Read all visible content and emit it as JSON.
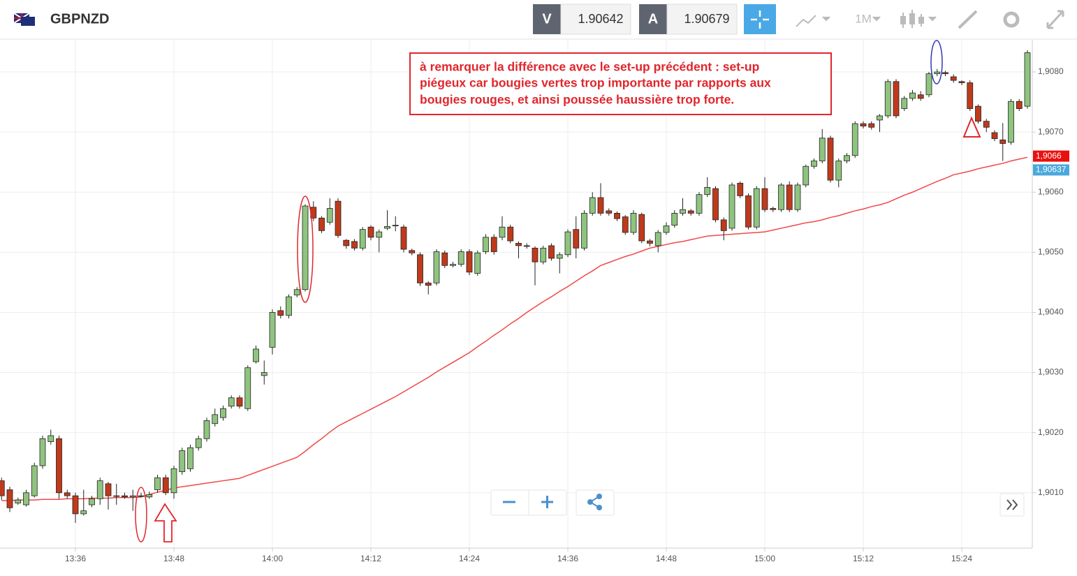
{
  "header": {
    "symbol": "GBPNZD",
    "sell_label": "V",
    "sell": "1.90642",
    "buy_label": "A",
    "buy": "1.90679",
    "timeframe": "1M"
  },
  "chart_data": {
    "type": "candlestick",
    "annotation": [
      "à remarquer la différence avec le set-up précédent : set-up",
      "piégeux car bougies vertes trop importante par rapports aux",
      "bougies rouges, et ainsi poussée haussière trop forte."
    ],
    "categories": [
      null,
      null,
      null,
      null,
      null,
      null,
      null,
      null,
      null,
      "13:36",
      null,
      null,
      null,
      null,
      null,
      null,
      null,
      null,
      null,
      null,
      null,
      "13:48",
      null,
      null,
      null,
      null,
      null,
      null,
      null,
      null,
      null,
      null,
      null,
      "14:00",
      null,
      null,
      null,
      null,
      null,
      null,
      null,
      null,
      null,
      null,
      null,
      "14:12",
      null,
      null,
      null,
      null,
      null,
      null,
      null,
      null,
      null,
      null,
      null,
      "14:24",
      null,
      null,
      null,
      null,
      null,
      null,
      null,
      null,
      null,
      null,
      null,
      "14:36",
      null,
      null,
      null,
      null,
      null,
      null,
      null,
      null,
      null,
      null,
      null,
      "14:48",
      null,
      null,
      null,
      null,
      null,
      null,
      null,
      null,
      null,
      null,
      null,
      "15:00",
      null,
      null,
      null,
      null,
      null,
      null,
      null,
      null,
      null,
      null,
      null,
      "15:12",
      null,
      null,
      null,
      null,
      null,
      null,
      null,
      null,
      null,
      null,
      null,
      "15:24",
      null,
      null,
      null,
      null,
      null,
      null,
      null,
      null
    ],
    "open": [
      1.9012,
      1.90105,
      1.90083,
      1.9008,
      1.90095,
      1.90145,
      1.90185,
      1.9019,
      1.901,
      1.90095,
      1.90065,
      1.9008,
      1.9009,
      1.90115,
      1.90095,
      1.90095,
      1.90093,
      1.90095,
      1.90093,
      1.90105,
      1.90125,
      1.901,
      1.90135,
      1.9014,
      1.90175,
      1.9019,
      1.90215,
      1.90225,
      1.90244,
      1.90258,
      1.9024,
      1.90318,
      1.90295,
      1.90342,
      1.90403,
      1.90395,
      1.90429,
      1.90438,
      1.90575,
      1.90557,
      1.9055,
      1.90585,
      1.9052,
      1.90518,
      1.90507,
      1.90542,
      1.90525,
      1.9054,
      1.90545,
      1.90542,
      1.90503,
      1.90496,
      1.90449,
      1.90449,
      1.90499,
      1.90478,
      1.9048,
      1.90501,
      1.90465,
      1.90501,
      1.90525,
      1.90525,
      1.90542,
      1.90515,
      1.90511,
      1.90507,
      1.90484,
      1.90511,
      1.9049,
      1.90496,
      1.90538,
      1.90507,
      1.90565,
      1.90591,
      1.90569,
      1.90565,
      1.90559,
      1.90533,
      1.90563,
      1.90519,
      1.90511,
      1.90533,
      1.90545,
      1.90565,
      1.90569,
      1.90565,
      1.90596,
      1.90606,
      1.90554,
      1.9054,
      1.90615,
      1.90594,
      1.90542,
      1.90606,
      1.90573,
      1.90571,
      1.90612,
      1.90571,
      1.90612,
      1.90643,
      1.90652,
      1.9069,
      1.9062,
      1.90652,
      1.90661,
      1.90714,
      1.90714,
      1.9072,
      1.90727,
      1.90784,
      1.90739,
      1.90756,
      1.90762,
      1.90762,
      1.90797,
      1.90799,
      1.90792,
      1.90784,
      1.90782,
      1.90743,
      1.90718,
      1.90699,
      1.90687,
      1.90683,
      1.90751,
      1.90743
    ],
    "high": [
      1.90125,
      1.9011,
      1.90092,
      1.90105,
      1.9015,
      1.90195,
      1.90205,
      1.90195,
      1.90105,
      1.901,
      1.90105,
      1.90095,
      1.90125,
      1.90118,
      1.90115,
      1.901,
      1.90105,
      1.901,
      1.90102,
      1.9013,
      1.9013,
      1.90145,
      1.90175,
      1.9018,
      1.90195,
      1.90225,
      1.9024,
      1.90245,
      1.90262,
      1.90262,
      1.90312,
      1.90345,
      1.9032,
      1.90405,
      1.9041,
      1.9043,
      1.90442,
      1.9058,
      1.90585,
      1.9056,
      1.9059,
      1.9059,
      1.90522,
      1.90522,
      1.90542,
      1.90545,
      1.90538,
      1.9057,
      1.9056,
      1.90546,
      1.90506,
      1.905,
      1.90452,
      1.90505,
      1.90503,
      1.90484,
      1.90505,
      1.90505,
      1.90503,
      1.9053,
      1.9053,
      1.9056,
      1.90546,
      1.90518,
      1.90515,
      1.9051,
      1.90511,
      1.90515,
      1.905,
      1.90538,
      1.9056,
      1.9057,
      1.906,
      1.90615,
      1.90573,
      1.90568,
      1.90562,
      1.9057,
      1.90566,
      1.90522,
      1.90537,
      1.9055,
      1.9057,
      1.9059,
      1.90572,
      1.906,
      1.90625,
      1.9061,
      1.90558,
      1.90616,
      1.90618,
      1.90598,
      1.9061,
      1.90625,
      1.90576,
      1.90615,
      1.90618,
      1.90616,
      1.90646,
      1.90656,
      1.90705,
      1.90694,
      1.90656,
      1.90665,
      1.90718,
      1.90718,
      1.90718,
      1.9073,
      1.90788,
      1.90788,
      1.9076,
      1.9077,
      1.90768,
      1.908,
      1.90805,
      1.90802,
      1.90796,
      1.90786,
      1.90786,
      1.90746,
      1.90722,
      1.90703,
      1.90715,
      1.90755,
      1.90755,
      1.90836
    ],
    "low": [
      1.90088,
      1.90068,
      1.9008,
      1.90077,
      1.90092,
      1.9014,
      1.9018,
      1.9009,
      1.9009,
      1.9005,
      1.90062,
      1.90076,
      1.9008,
      1.90072,
      1.9008,
      1.9009,
      1.9007,
      1.90092,
      1.9009,
      1.901,
      1.90096,
      1.9009,
      1.9013,
      1.90135,
      1.9017,
      1.90185,
      1.9021,
      1.9022,
      1.9024,
      1.9024,
      1.90236,
      1.90315,
      1.9028,
      1.9033,
      1.9039,
      1.9039,
      1.90425,
      1.90435,
      1.90552,
      1.90532,
      1.90546,
      1.90524,
      1.90506,
      1.90503,
      1.90503,
      1.9052,
      1.905,
      1.90537,
      1.90535,
      1.905,
      1.90495,
      1.90444,
      1.9043,
      1.90445,
      1.90474,
      1.90475,
      1.90476,
      1.90462,
      1.90461,
      1.90497,
      1.90496,
      1.9052,
      1.90515,
      1.9049,
      1.90506,
      1.90445,
      1.9048,
      1.90486,
      1.90465,
      1.90492,
      1.9049,
      1.90503,
      1.90561,
      1.90561,
      1.90561,
      1.90552,
      1.90529,
      1.90529,
      1.90515,
      1.9051,
      1.905,
      1.90529,
      1.90541,
      1.90561,
      1.90561,
      1.90561,
      1.90592,
      1.9055,
      1.9052,
      1.90536,
      1.9059,
      1.90538,
      1.90538,
      1.90567,
      1.90567,
      1.90567,
      1.90567,
      1.90567,
      1.90608,
      1.90639,
      1.90648,
      1.90616,
      1.90608,
      1.90648,
      1.90657,
      1.90706,
      1.90704,
      1.907,
      1.90723,
      1.90723,
      1.90735,
      1.90752,
      1.90752,
      1.90758,
      1.90793,
      1.90793,
      1.90782,
      1.90778,
      1.90735,
      1.90714,
      1.907,
      1.90685,
      1.90652,
      1.90679,
      1.90735,
      1.90739
    ],
    "close": [
      1.90095,
      1.90075,
      1.90088,
      1.901,
      1.90145,
      1.9019,
      1.90195,
      1.901,
      1.90095,
      1.90065,
      1.9007,
      1.9009,
      1.9012,
      1.90095,
      1.90095,
      1.90093,
      1.90095,
      1.90095,
      1.90097,
      1.90125,
      1.901,
      1.9014,
      1.9017,
      1.90175,
      1.9019,
      1.9022,
      1.9023,
      1.9024,
      1.90258,
      1.90244,
      1.90308,
      1.90339,
      1.903,
      1.904,
      1.90395,
      1.90426,
      1.90438,
      1.90577,
      1.90557,
      1.90536,
      1.90573,
      1.90528,
      1.90511,
      1.90507,
      1.90538,
      1.90525,
      1.90534,
      1.90543,
      1.90545,
      1.90505,
      1.90499,
      1.90449,
      1.90445,
      1.90501,
      1.90478,
      1.9048,
      1.90501,
      1.90467,
      1.90499,
      1.90525,
      1.90501,
      1.90542,
      1.90519,
      1.90511,
      1.9051,
      1.90484,
      1.90507,
      1.9049,
      1.90496,
      1.90534,
      1.90507,
      1.90565,
      1.90591,
      1.90565,
      1.90565,
      1.90556,
      1.90533,
      1.90565,
      1.90519,
      1.90515,
      1.90533,
      1.90544,
      1.90565,
      1.90571,
      1.90565,
      1.90596,
      1.90608,
      1.90554,
      1.90536,
      1.90612,
      1.90594,
      1.90542,
      1.90606,
      1.90571,
      1.90571,
      1.90612,
      1.90571,
      1.90612,
      1.90643,
      1.90652,
      1.9069,
      1.9062,
      1.90652,
      1.90661,
      1.90714,
      1.9071,
      1.90708,
      1.90727,
      1.90784,
      1.90727,
      1.90756,
      1.90765,
      1.90756,
      1.90797,
      1.908,
      1.90797,
      1.90786,
      1.90782,
      1.90739,
      1.90718,
      1.90708,
      1.90689,
      1.90681,
      1.90751,
      1.90739,
      1.90832
    ],
    "up_color": "#8fc47f",
    "down_color": "#bf3a1b",
    "ma": {
      "color": "#f04848",
      "values": [
        1.90087,
        1.90087,
        1.90088,
        1.90088,
        1.90088,
        1.90089,
        1.90089,
        1.90089,
        1.9009,
        1.9009,
        1.9009,
        1.90091,
        1.90091,
        1.90091,
        1.90092,
        1.90092,
        1.90092,
        1.90093,
        1.90097,
        1.90101,
        1.90104,
        1.90108,
        1.9011,
        1.90112,
        1.90114,
        1.90116,
        1.90118,
        1.9012,
        1.90122,
        1.90124,
        1.90129,
        1.90134,
        1.90139,
        1.90144,
        1.90149,
        1.90154,
        1.90159,
        1.90169,
        1.9018,
        1.9019,
        1.90201,
        1.90211,
        1.90218,
        1.90225,
        1.90232,
        1.90239,
        1.90246,
        1.90253,
        1.9026,
        1.90268,
        1.90276,
        1.90284,
        1.90292,
        1.90301,
        1.90309,
        1.90317,
        1.90325,
        1.90333,
        1.90343,
        1.90352,
        1.90362,
        1.90371,
        1.90381,
        1.9039,
        1.904,
        1.90409,
        1.90418,
        1.90426,
        1.90435,
        1.90443,
        1.90452,
        1.90461,
        1.90469,
        1.90478,
        1.90483,
        1.90488,
        1.90493,
        1.90497,
        1.90502,
        1.90507,
        1.9051,
        1.90513,
        1.90516,
        1.90518,
        1.90521,
        1.90524,
        1.90527,
        1.90528,
        1.90529,
        1.9053,
        1.90531,
        1.90532,
        1.90533,
        1.90534,
        1.90537,
        1.9054,
        1.90543,
        1.90546,
        1.90549,
        1.90551,
        1.90554,
        1.90558,
        1.90561,
        1.90565,
        1.90569,
        1.90572,
        1.90576,
        1.90579,
        1.90583,
        1.90589,
        1.90595,
        1.906,
        1.90606,
        1.90612,
        1.90618,
        1.90623,
        1.90629,
        1.90632,
        1.90635,
        1.90639,
        1.90642,
        1.90645,
        1.90648,
        1.90652,
        1.90655,
        1.90658
      ]
    },
    "ylim": [
      1.90008,
      1.9085
    ],
    "yticks": [
      {
        "value": 1.901,
        "label": "1,9010"
      },
      {
        "value": 1.902,
        "label": "1,9020"
      },
      {
        "value": 1.903,
        "label": "1,9030"
      },
      {
        "value": 1.904,
        "label": "1,9040"
      },
      {
        "value": 1.905,
        "label": "1,9050"
      },
      {
        "value": 1.906,
        "label": "1,9060"
      },
      {
        "value": 1.907,
        "label": "1,9070"
      },
      {
        "value": 1.908,
        "label": "1,9080"
      }
    ],
    "price_tags": [
      {
        "value": 1.9066,
        "label": "1,9066",
        "color": "#e8110f"
      },
      {
        "value": 1.90637,
        "label": "1,90637",
        "color": "#4aa8dc"
      }
    ],
    "grid": true
  }
}
